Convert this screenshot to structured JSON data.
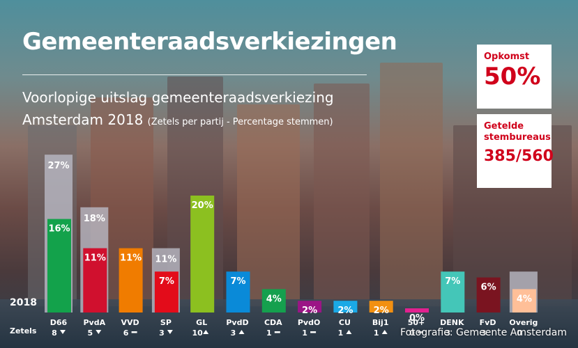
{
  "header": {
    "title": "Gemeenteraadsverkiezingen",
    "subtitle_line1": "Voorlopige uitslag gemeenteraadsverkiezing",
    "subtitle_line2": "Amsterdam 2018",
    "subtitle_note": "(Zetels per partij - Percentage stemmen)"
  },
  "cards": {
    "turnout_label": "Opkomst",
    "turnout_value": "50%",
    "counted_label_1": "Getelde",
    "counted_label_2": "stembureaus",
    "counted_value": "385/560"
  },
  "labels": {
    "year": "2018",
    "seats_row": "Zetels"
  },
  "credit": "Fotografie: Gemeente Amsterdam",
  "chart_data": {
    "type": "bar",
    "title": "",
    "ylim": [
      0,
      28
    ],
    "categories": [
      "D66",
      "PvdA",
      "VVD",
      "SP",
      "GL",
      "PvdD",
      "CDA",
      "PvdO",
      "CU",
      "Bij1",
      "50+",
      "DENK",
      "FvD",
      "Overig"
    ],
    "series": [
      {
        "values": [
          27,
          18,
          null,
          11,
          null,
          null,
          null,
          null,
          null,
          null,
          null,
          null,
          null,
          7
        ]
      },
      {
        "values": [
          16,
          11,
          11,
          7,
          20,
          7,
          4,
          2,
          2,
          2,
          0,
          7,
          6,
          4
        ]
      }
    ],
    "value_labels_previous": [
      "27%",
      "18%",
      "",
      "11%",
      "",
      "",
      "",
      "",
      "",
      "",
      "",
      "",
      "",
      ""
    ],
    "value_labels": [
      "16%",
      "11%",
      "11%",
      "7%",
      "20%",
      "7%",
      "4%",
      "2%",
      "2%",
      "2%",
      "0%",
      "7%",
      "6%",
      "4%"
    ],
    "colors": [
      "#13a24b",
      "#d0102e",
      "#f07c00",
      "#e30c1a",
      "#8cc020",
      "#0a8ad8",
      "#15a04e",
      "#9b1586",
      "#1aa9e6",
      "#f29011",
      "#e2218f",
      "#44c6b8",
      "#7a1420",
      "#ffbf98"
    ],
    "previous_color": "#b9b9c4",
    "seats": [
      "8",
      "5",
      "6",
      "3",
      "10",
      "3",
      "1",
      "1",
      "1",
      "1",
      "0",
      "3",
      "3",
      "0"
    ],
    "trend": [
      "down",
      "down",
      "flat",
      "down",
      "up",
      "up",
      "flat",
      "flat",
      "up",
      "up",
      "flat",
      "",
      "",
      ""
    ]
  }
}
